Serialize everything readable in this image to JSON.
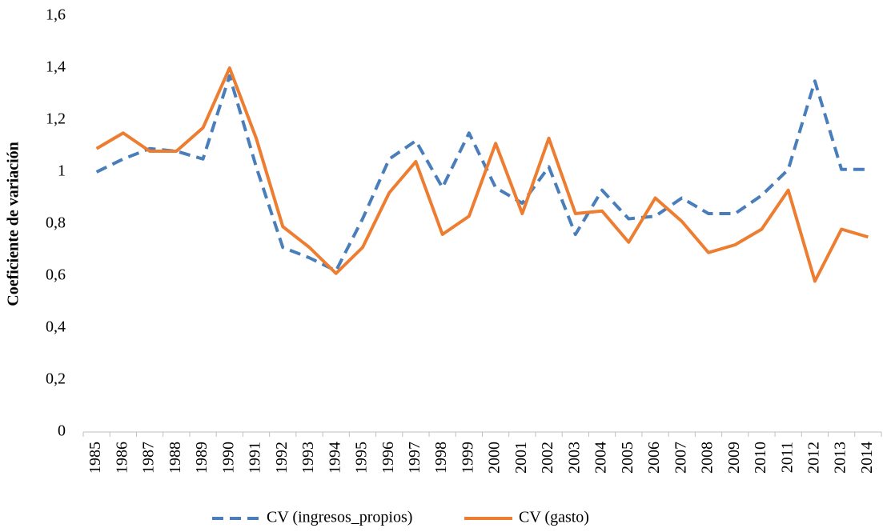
{
  "chart_data": {
    "type": "line",
    "y_label": "Coeficiente de variación",
    "categories": [
      "1985",
      "1986",
      "1987",
      "1988",
      "1989",
      "1990",
      "1991",
      "1992",
      "1993",
      "1994",
      "1995",
      "1996",
      "1997",
      "1998",
      "1999",
      "2000",
      "2001",
      "2002",
      "2003",
      "2004",
      "2005",
      "2006",
      "2007",
      "2008",
      "2009",
      "2010",
      "2011",
      "2012",
      "2013",
      "2014"
    ],
    "series": [
      {
        "name": "CV (ingresos_propios)",
        "color": "#4a7ebb",
        "dashed": true,
        "values": [
          1.0,
          1.05,
          1.09,
          1.08,
          1.05,
          1.37,
          1.02,
          0.71,
          0.67,
          0.62,
          0.82,
          1.05,
          1.12,
          0.94,
          1.15,
          0.94,
          0.88,
          1.02,
          0.76,
          0.93,
          0.82,
          0.83,
          0.9,
          0.84,
          0.84,
          0.91,
          1.01,
          1.35,
          1.01,
          1.01
        ]
      },
      {
        "name": "CV (gasto)",
        "color": "#ed7d31",
        "dashed": false,
        "values": [
          1.09,
          1.15,
          1.08,
          1.08,
          1.17,
          1.4,
          1.13,
          0.79,
          0.71,
          0.61,
          0.71,
          0.92,
          1.04,
          0.76,
          0.83,
          1.11,
          0.84,
          1.13,
          0.84,
          0.85,
          0.73,
          0.9,
          0.81,
          0.69,
          0.72,
          0.78,
          0.93,
          0.58,
          0.78,
          0.75
        ]
      }
    ],
    "ylim": [
      0,
      1.6
    ],
    "yticks": [
      0,
      {
        "value": 0.2,
        "label": "0,2"
      },
      {
        "value": 0.4,
        "label": "0,4"
      },
      {
        "value": 0.6,
        "label": "0,6"
      },
      {
        "value": 0.8,
        "label": "0,8"
      },
      1,
      {
        "value": 1.2,
        "label": "1,2"
      },
      {
        "value": 1.4,
        "label": "1,4"
      },
      {
        "value": 1.6,
        "label": "1,6"
      }
    ],
    "grid": false,
    "legend": "bottom"
  }
}
